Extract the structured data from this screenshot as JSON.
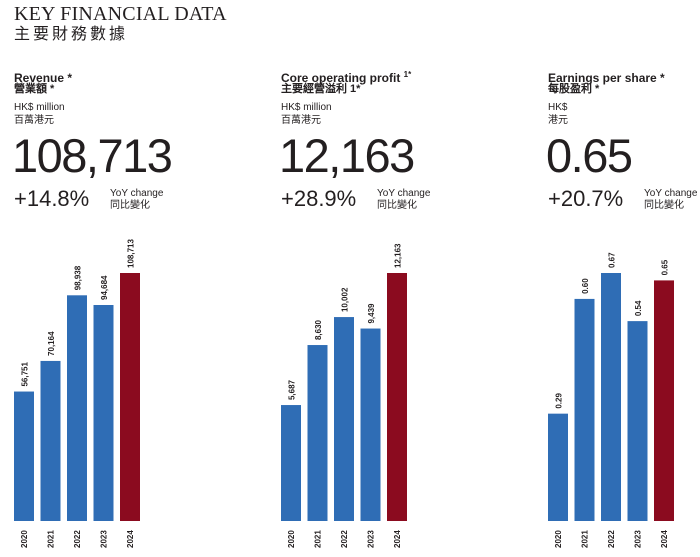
{
  "page": {
    "title": "KEY FINANCIAL DATA",
    "subtitle": "主要財務數據"
  },
  "colors": {
    "bar_default": "#2f6db5",
    "bar_highlight": "#8b0b1f",
    "text": "#231f20"
  },
  "panels": [
    {
      "title": "Revenue *",
      "title_sup": "",
      "title_zh": "營業額 *",
      "unit": "HK$ million",
      "unit_zh": "百萬港元",
      "value": "108,713",
      "change": "+14.8%",
      "change_label": "YoY change",
      "change_label_zh": "同比變化"
    },
    {
      "title": "Core operating profit ",
      "title_sup": "1*",
      "title_zh": "主要經營溢利 1*",
      "unit": "HK$ million",
      "unit_zh": "百萬港元",
      "value": "12,163",
      "change": "+28.9%",
      "change_label": "YoY change",
      "change_label_zh": "同比變化"
    },
    {
      "title": "Earnings per share *",
      "title_sup": "",
      "title_zh": "每股盈利 *",
      "unit": "HK$",
      "unit_zh": "港元",
      "value": "0.65",
      "change": "+20.7%",
      "change_label": "YoY change",
      "change_label_zh": "同比變化"
    }
  ],
  "chart_data": [
    {
      "type": "bar",
      "categories": [
        "2020",
        "2021",
        "2022",
        "2023",
        "2024"
      ],
      "values": [
        56751,
        70164,
        98938,
        94684,
        108713
      ],
      "value_labels": [
        "56,751",
        "70,164",
        "98,938",
        "94,684",
        "108,713"
      ],
      "highlight_index": 4
    },
    {
      "type": "bar",
      "categories": [
        "2020",
        "2021",
        "2022",
        "2023",
        "2024"
      ],
      "values": [
        5687,
        8630,
        10002,
        9439,
        12163
      ],
      "value_labels": [
        "5,687",
        "8,630",
        "10,002",
        "9,439",
        "12,163"
      ],
      "highlight_index": 4
    },
    {
      "type": "bar",
      "categories": [
        "2020",
        "2021",
        "2022",
        "2023",
        "2024"
      ],
      "values": [
        0.29,
        0.6,
        0.67,
        0.54,
        0.65
      ],
      "value_labels": [
        "0.29",
        "0.60",
        "0.67",
        "0.54",
        "0.65"
      ],
      "highlight_index": 4
    }
  ]
}
